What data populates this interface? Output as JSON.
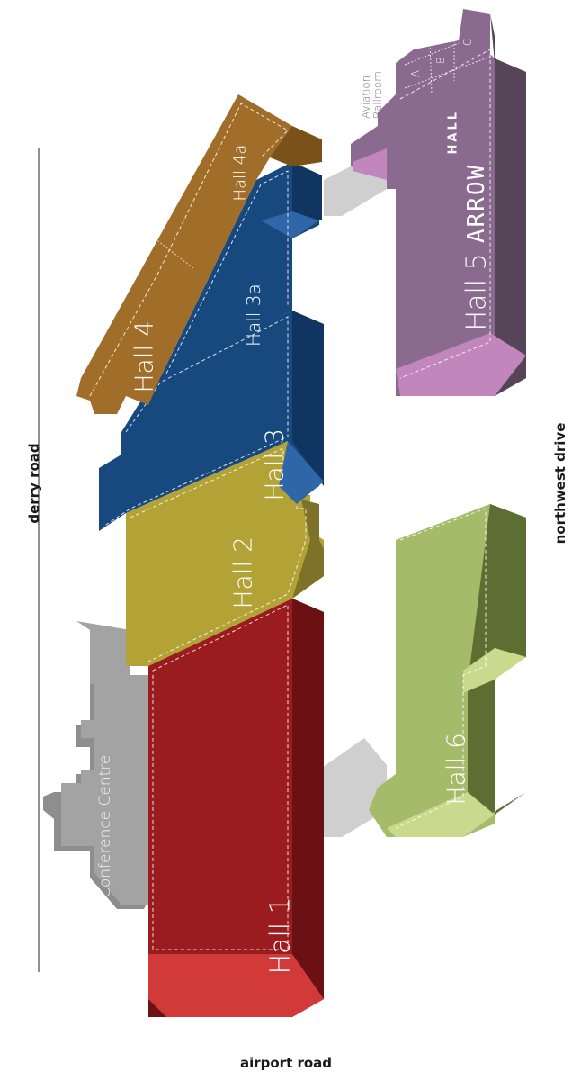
{
  "roads": {
    "top": "derry road",
    "bottom": "airport road",
    "right": "northwest drive"
  },
  "halls": {
    "hall1": "Hall 1",
    "hall2": "Hall 2",
    "hall3": "Hall 3",
    "hall3a": "Hall 3a",
    "hall4": "Hall 4",
    "hall4a": "Hall 4a",
    "hall5": "Hall 5",
    "hall6": "Hall 6",
    "conference": "Conference Centre",
    "arrow_hall_1": "ARROW",
    "arrow_hall_2": "HALL",
    "aviation_1": "Aviation",
    "aviation_2": "Ballroom",
    "room_a": "A",
    "room_b": "B",
    "room_c": "C"
  },
  "colors": {
    "hall1": "#9b1c1f",
    "hall2": "#b3a236",
    "hall3": "#17497f",
    "hall4": "#a16e2a",
    "hall5": "#8b6a90",
    "hall6": "#a4bb6a",
    "conference": "#9d9d9d",
    "connector": "#cfcfcf"
  }
}
